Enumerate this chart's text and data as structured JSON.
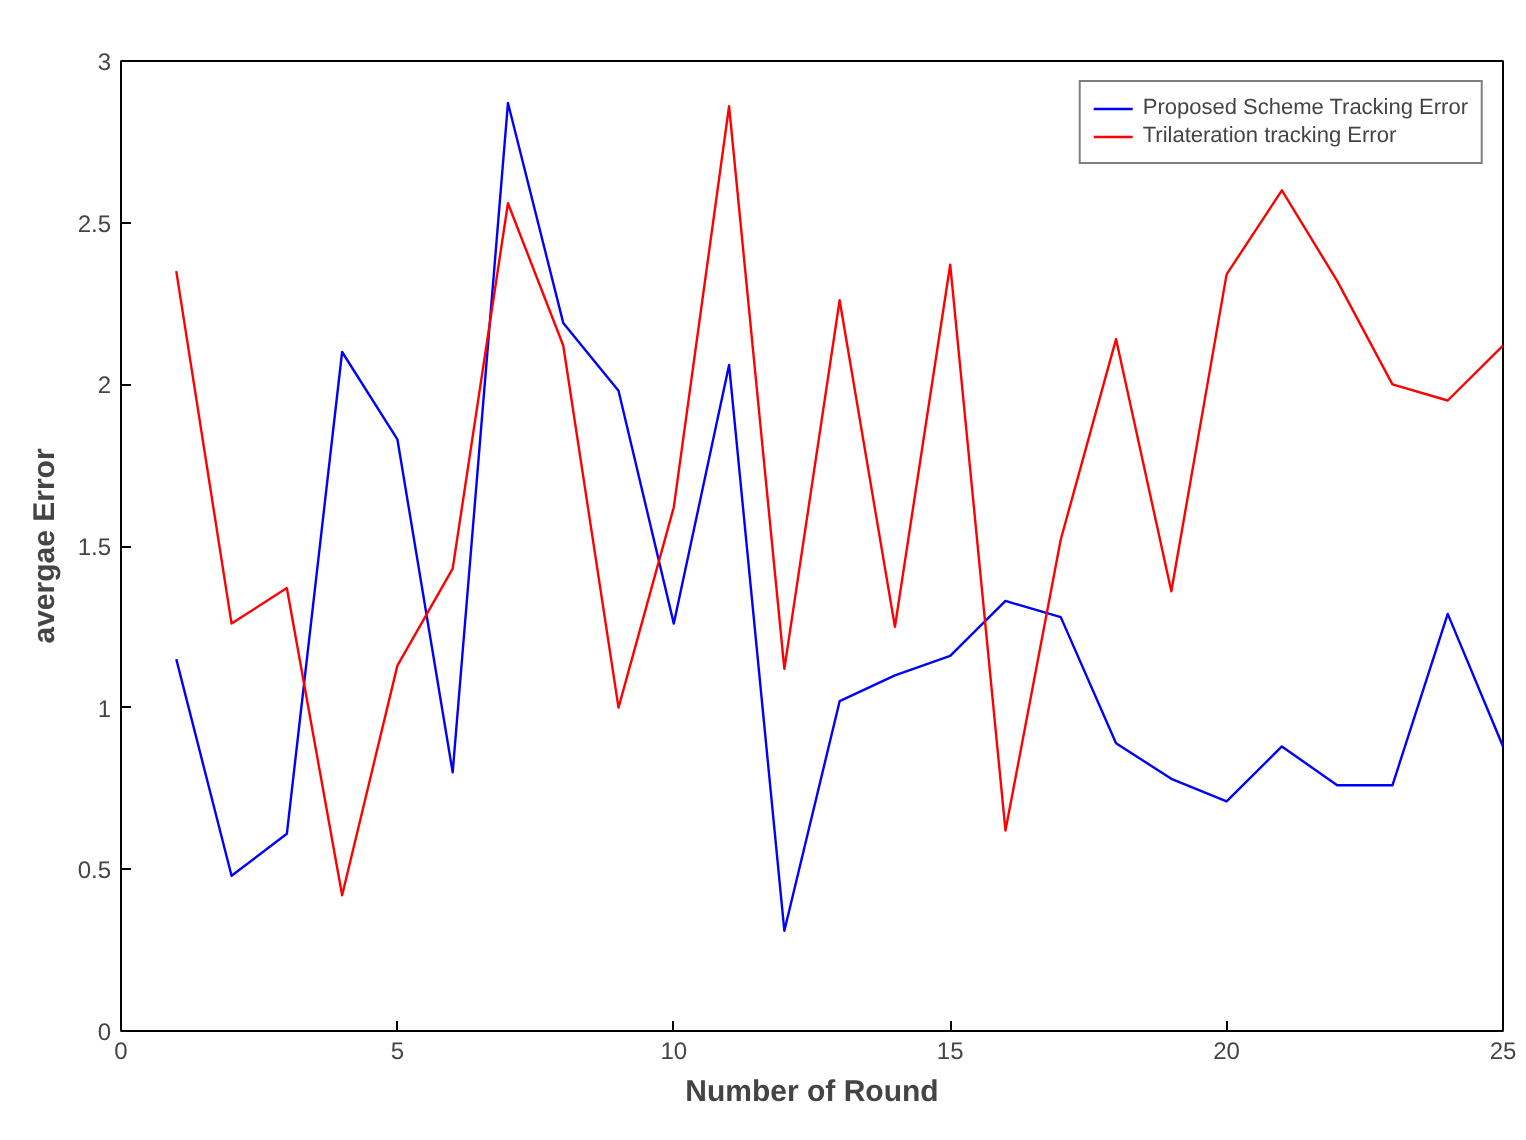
{
  "chart_data": {
    "type": "line",
    "xlabel": "Number of Round",
    "ylabel": "avergae Error",
    "x": [
      1,
      2,
      3,
      4,
      5,
      6,
      7,
      8,
      9,
      10,
      11,
      12,
      13,
      14,
      15,
      16,
      17,
      18,
      19,
      20,
      21,
      22,
      23,
      24,
      25
    ],
    "series": [
      {
        "name": "Proposed Scheme Tracking Error",
        "color": "#0000ff",
        "values": [
          1.15,
          0.48,
          0.61,
          2.1,
          1.83,
          0.8,
          2.87,
          2.19,
          1.98,
          1.26,
          2.06,
          0.31,
          1.02,
          1.1,
          1.16,
          1.33,
          1.28,
          0.89,
          0.78,
          0.71,
          0.88,
          0.76,
          0.76,
          1.29,
          0.88
        ]
      },
      {
        "name": "Trilateration tracking Error",
        "color": "#ff0000",
        "values": [
          2.35,
          1.26,
          1.37,
          0.42,
          1.13,
          1.43,
          2.56,
          2.12,
          1.0,
          1.62,
          2.86,
          1.12,
          2.26,
          1.25,
          2.37,
          0.62,
          1.52,
          2.14,
          1.36,
          2.34,
          2.6,
          2.32,
          2.0,
          1.95,
          2.12
        ]
      }
    ],
    "xlim": [
      0,
      25
    ],
    "xticks": [
      0,
      5,
      10,
      15,
      20,
      25
    ],
    "ylim": [
      0,
      3
    ],
    "yticks": [
      0,
      0.5,
      1,
      1.5,
      2,
      2.5,
      3
    ],
    "grid": false,
    "legend": "top right",
    "marker": "none",
    "line_style": "solid"
  }
}
